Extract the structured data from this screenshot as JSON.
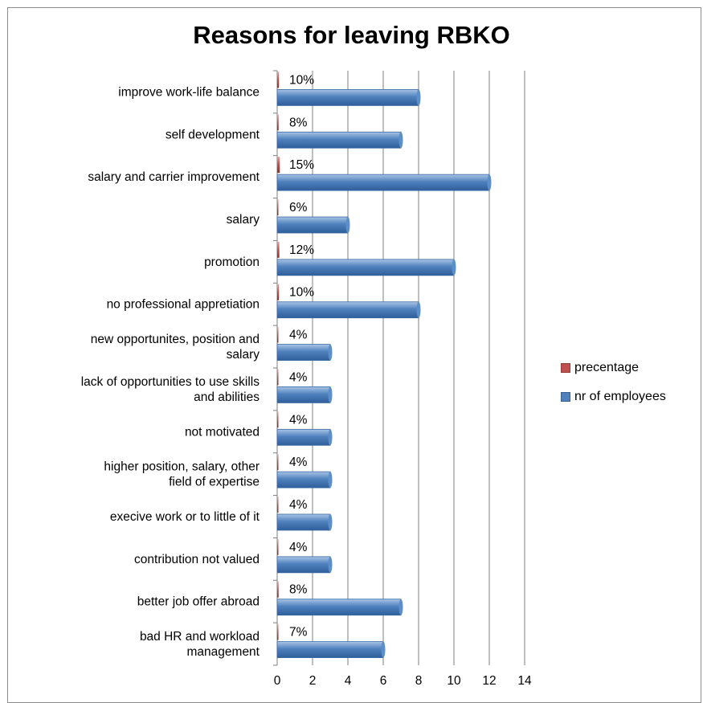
{
  "chart_data": {
    "type": "bar",
    "orientation": "horizontal",
    "title": "Reasons for leaving RBKO",
    "categories": [
      "improve work-life balance",
      "self development",
      "salary and carrier improvement",
      "salary",
      "promotion",
      "no professional appretiation",
      "new opportunites, position and salary",
      "lack of opportunities to use skills and abilities",
      "not motivated",
      "higher position, salary, other field of expertise",
      "execive work or to little of it",
      "contribution not valued",
      "better job offer abroad",
      "bad HR and workload management"
    ],
    "category_lines": [
      [
        "improve work-life balance"
      ],
      [
        "self development"
      ],
      [
        "salary and carrier improvement"
      ],
      [
        "salary"
      ],
      [
        "promotion"
      ],
      [
        "no professional appretiation"
      ],
      [
        "new opportunites, position and",
        "salary"
      ],
      [
        "lack of opportunities to use skills",
        "and abilities"
      ],
      [
        "not motivated"
      ],
      [
        "higher position, salary, other",
        "field of expertise"
      ],
      [
        "execive work or to little of it"
      ],
      [
        "contribution not valued"
      ],
      [
        "better job offer abroad"
      ],
      [
        "bad HR and workload",
        "management"
      ]
    ],
    "series": [
      {
        "name": "precentage",
        "color": "#c0504d",
        "values": [
          0.1,
          0.08,
          0.15,
          0.06,
          0.12,
          0.1,
          0.04,
          0.04,
          0.04,
          0.04,
          0.04,
          0.04,
          0.08,
          0.07
        ],
        "labels": [
          "10%",
          "8%",
          "15%",
          "6%",
          "12%",
          "10%",
          "4%",
          "4%",
          "4%",
          "4%",
          "4%",
          "4%",
          "8%",
          "7%"
        ]
      },
      {
        "name": "nr of employees",
        "color": "#4f81bd",
        "values": [
          8,
          7,
          12,
          4,
          10,
          8,
          3,
          3,
          3,
          3,
          3,
          3,
          7,
          6
        ]
      }
    ],
    "xlim": [
      0,
      14
    ],
    "xticks": [
      "0",
      "2",
      "4",
      "6",
      "8",
      "10",
      "12",
      "14"
    ],
    "grid": true,
    "legend_position": "right"
  }
}
